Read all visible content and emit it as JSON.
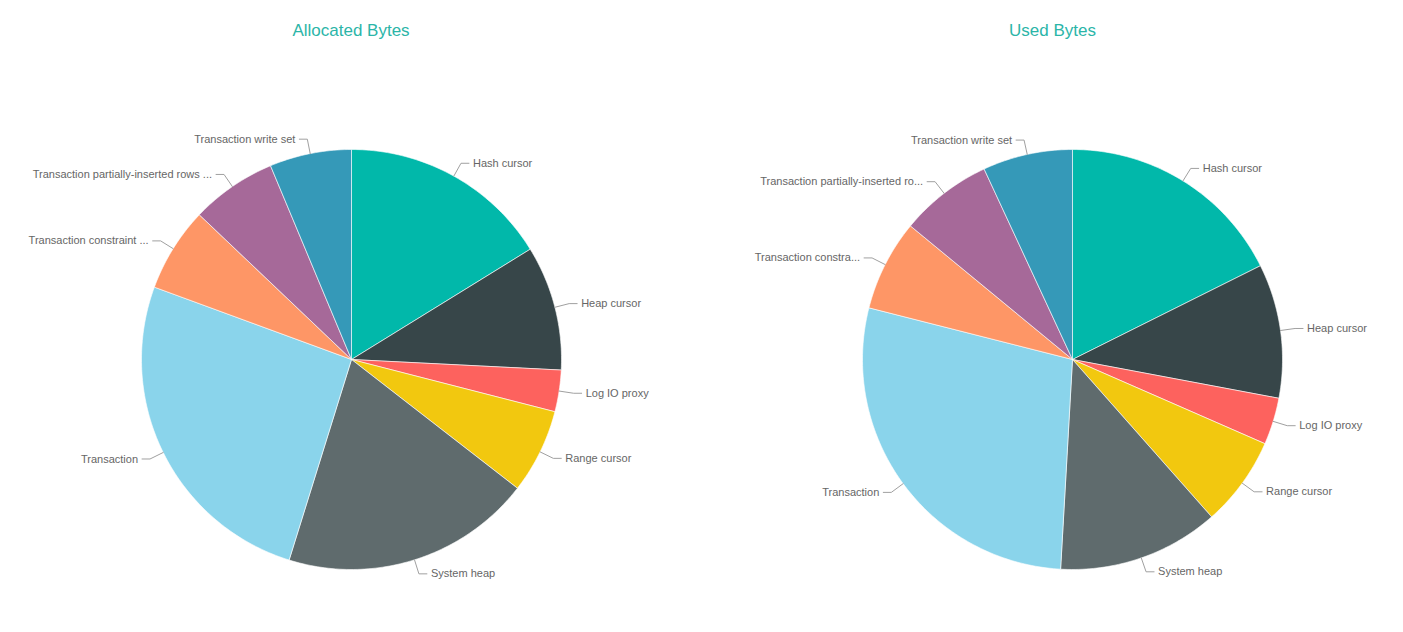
{
  "chart_data": [
    {
      "type": "pie",
      "title": "Allocated Bytes",
      "categories": [
        "Hash cursor",
        "Heap cursor",
        "Log IO proxy",
        "Range cursor",
        "System heap",
        "Transaction",
        "Transaction constraint ...",
        "Transaction partially-inserted rows ...",
        "Transaction write set"
      ],
      "values": [
        16.2,
        9.6,
        3.2,
        6.5,
        19.3,
        25.8,
        6.5,
        6.6,
        6.3
      ],
      "colors": [
        "#01b8aa",
        "#374649",
        "#fd625e",
        "#f2c80f",
        "#5f6b6d",
        "#8ad4eb",
        "#fe9666",
        "#a66999",
        "#3599b8"
      ]
    },
    {
      "type": "pie",
      "title": "Used Bytes",
      "categories": [
        "Hash cursor",
        "Heap cursor",
        "Log IO proxy",
        "Range cursor",
        "System heap",
        "Transaction",
        "Transaction constra...",
        "Transaction partially-inserted ro...",
        "Transaction write set"
      ],
      "values": [
        17.6,
        10.3,
        3.6,
        6.9,
        12.4,
        28.0,
        7.0,
        7.1,
        6.9
      ],
      "colors": [
        "#01b8aa",
        "#374649",
        "#fd625e",
        "#f2c80f",
        "#5f6b6d",
        "#8ad4eb",
        "#fe9666",
        "#a66999",
        "#3599b8"
      ]
    }
  ]
}
